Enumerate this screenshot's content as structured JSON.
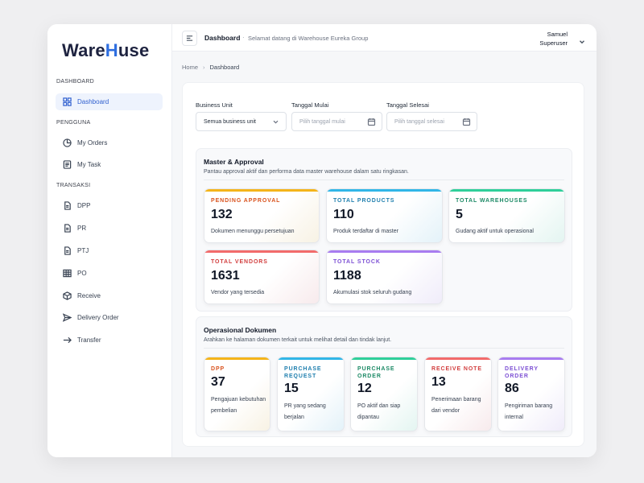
{
  "app": {
    "logo_prefix": "Ware",
    "logo_h": "H",
    "logo_suffix": "use"
  },
  "sidebar": {
    "sections": [
      "DASHBOARD",
      "PENGGUNA",
      "TRANSAKSI"
    ],
    "items": [
      {
        "label": "Dashboard",
        "icon": "grid-icon",
        "active": true
      },
      {
        "label": "My Orders",
        "icon": "pie-chart-icon"
      },
      {
        "label": "My Task",
        "icon": "task-list-icon"
      },
      {
        "label": "DPP",
        "icon": "document-icon"
      },
      {
        "label": "PR",
        "icon": "document-icon"
      },
      {
        "label": "PTJ",
        "icon": "document-icon"
      },
      {
        "label": "PO",
        "icon": "table-icon"
      },
      {
        "label": "Receive",
        "icon": "box-icon"
      },
      {
        "label": "Delivery Order",
        "icon": "send-icon"
      },
      {
        "label": "Transfer",
        "icon": "arrow-right-icon"
      }
    ]
  },
  "topbar": {
    "title": "Dashboard",
    "separator": "·",
    "subtitle": "Selamat datang di Warehouse Eureka Group",
    "user_name": "Samuel",
    "user_role": "Superuser"
  },
  "breadcrumb": {
    "home": "Home",
    "current": "Dashboard"
  },
  "filters": {
    "business_unit_label": "Business Unit",
    "business_unit_value": "Semua business unit",
    "start_label": "Tanggal Mulai",
    "start_placeholder": "Pilih tanggal mulai",
    "end_label": "Tanggal Selesai",
    "end_placeholder": "Pilih tanggal selesai"
  },
  "master": {
    "title": "Master & Approval",
    "subtitle": "Pantau approval aktif dan performa data master warehouse dalam satu ringkasan.",
    "cards": [
      {
        "label": "PENDING APPROVAL",
        "value": "132",
        "desc": "Dokumen menunggu persetujuan",
        "color": "#f4b41a",
        "text_color": "#d9531e"
      },
      {
        "label": "TOTAL PRODUCTS",
        "value": "110",
        "desc": "Produk terdaftar di master",
        "color": "#31b6e7",
        "text_color": "#1f7fae"
      },
      {
        "label": "TOTAL WAREHOUSES",
        "value": "5",
        "desc": "Gudang aktif untuk operasional",
        "color": "#2fcf9a",
        "text_color": "#1d8a66"
      },
      {
        "label": "TOTAL VENDORS",
        "value": "1631",
        "desc": "Vendor yang tersedia",
        "color": "#f26b6b",
        "text_color": "#d23e3e"
      },
      {
        "label": "TOTAL STOCK",
        "value": "1188",
        "desc": "Akumulasi stok seluruh gudang",
        "color": "#a87cf0",
        "text_color": "#7c4fd4"
      }
    ]
  },
  "operasional": {
    "title": "Operasional Dokumen",
    "subtitle": "Arahkan ke halaman dokumen terkait untuk melihat detail dan tindak lanjut.",
    "cards": [
      {
        "label": "DPP",
        "value": "37",
        "desc": "Pengajuan kebutuhan pembelian",
        "color": "#f4b41a",
        "text_color": "#d9531e"
      },
      {
        "label": "PURCHASE REQUEST",
        "value": "15",
        "desc": "PR yang sedang berjalan",
        "color": "#31b6e7",
        "text_color": "#1f7fae"
      },
      {
        "label": "PURCHASE ORDER",
        "value": "12",
        "desc": "PO aktif dan siap dipantau",
        "color": "#2fcf9a",
        "text_color": "#1d8a66"
      },
      {
        "label": "RECEIVE NOTE",
        "value": "13",
        "desc": "Penerimaan barang dari vendor",
        "color": "#f26b6b",
        "text_color": "#d23e3e"
      },
      {
        "label": "DELIVERY ORDER",
        "value": "86",
        "desc": "Pengiriman barang internal",
        "color": "#a87cf0",
        "text_color": "#7c4fd4"
      }
    ]
  }
}
